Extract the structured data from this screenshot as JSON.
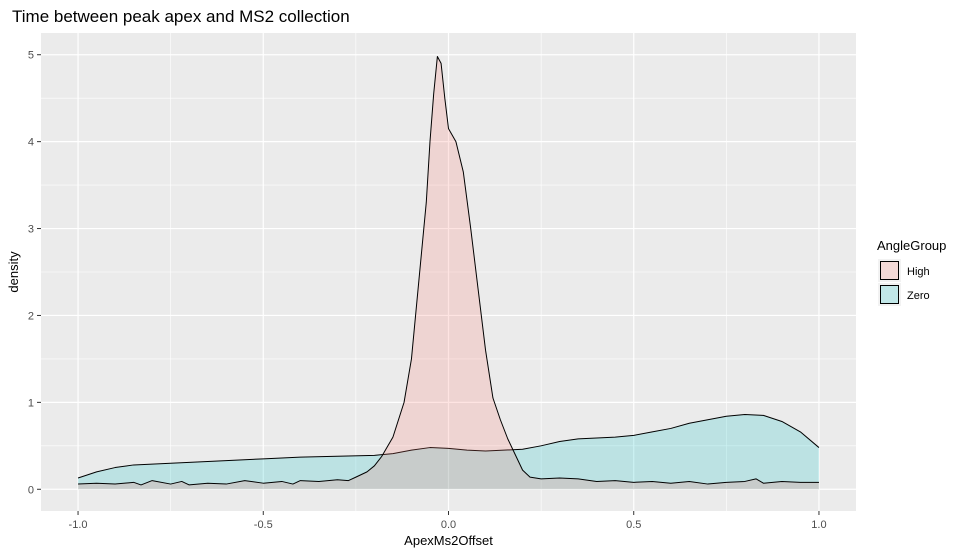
{
  "chart_data": {
    "type": "area",
    "title": "Time between peak apex and MS2 collection",
    "xlabel": "ApexMs2Offset",
    "ylabel": "density",
    "xlim": [
      -1.1,
      1.1
    ],
    "ylim": [
      -0.25,
      5.25
    ],
    "x_ticks": [
      -1.0,
      -0.5,
      0.0,
      0.5,
      1.0
    ],
    "x_tick_labels": [
      "-1.0",
      "-0.5",
      "0.0",
      "0.5",
      "1.0"
    ],
    "y_ticks": [
      0,
      1,
      2,
      3,
      4,
      5
    ],
    "y_tick_labels": [
      "0",
      "1",
      "2",
      "3",
      "4",
      "5"
    ],
    "grid": true,
    "panel_background": "#ebebeb",
    "legend_position": "right",
    "legend_title": "AngleGroup",
    "series": [
      {
        "name": "High",
        "fill": "#f8766d",
        "fill_opacity": 0.2,
        "x": [
          -1.0,
          -0.95,
          -0.9,
          -0.85,
          -0.83,
          -0.8,
          -0.75,
          -0.72,
          -0.7,
          -0.65,
          -0.6,
          -0.55,
          -0.5,
          -0.45,
          -0.42,
          -0.4,
          -0.35,
          -0.3,
          -0.27,
          -0.25,
          -0.22,
          -0.2,
          -0.18,
          -0.15,
          -0.12,
          -0.1,
          -0.08,
          -0.06,
          -0.05,
          -0.04,
          -0.03,
          -0.02,
          -0.01,
          0.0,
          0.02,
          0.04,
          0.06,
          0.08,
          0.1,
          0.12,
          0.14,
          0.16,
          0.18,
          0.2,
          0.22,
          0.25,
          0.3,
          0.35,
          0.4,
          0.45,
          0.5,
          0.55,
          0.6,
          0.65,
          0.7,
          0.75,
          0.8,
          0.83,
          0.85,
          0.9,
          0.95,
          1.0
        ],
        "y": [
          0.06,
          0.07,
          0.06,
          0.08,
          0.05,
          0.1,
          0.06,
          0.09,
          0.05,
          0.07,
          0.06,
          0.1,
          0.07,
          0.09,
          0.06,
          0.1,
          0.09,
          0.11,
          0.1,
          0.14,
          0.2,
          0.27,
          0.38,
          0.6,
          1.0,
          1.5,
          2.4,
          3.3,
          4.0,
          4.55,
          4.98,
          4.9,
          4.5,
          4.15,
          4.0,
          3.65,
          3.0,
          2.3,
          1.6,
          1.05,
          0.8,
          0.58,
          0.4,
          0.22,
          0.14,
          0.12,
          0.13,
          0.12,
          0.09,
          0.1,
          0.08,
          0.09,
          0.07,
          0.09,
          0.06,
          0.08,
          0.09,
          0.12,
          0.07,
          0.09,
          0.08,
          0.08
        ]
      },
      {
        "name": "Zero",
        "fill": "#00bfc4",
        "fill_opacity": 0.2,
        "x": [
          -1.0,
          -0.95,
          -0.9,
          -0.85,
          -0.8,
          -0.7,
          -0.6,
          -0.5,
          -0.4,
          -0.3,
          -0.2,
          -0.15,
          -0.1,
          -0.05,
          0.0,
          0.05,
          0.1,
          0.15,
          0.2,
          0.25,
          0.3,
          0.35,
          0.4,
          0.45,
          0.5,
          0.55,
          0.6,
          0.65,
          0.7,
          0.75,
          0.8,
          0.85,
          0.9,
          0.95,
          1.0
        ],
        "y": [
          0.13,
          0.2,
          0.25,
          0.28,
          0.29,
          0.31,
          0.33,
          0.35,
          0.37,
          0.38,
          0.39,
          0.41,
          0.45,
          0.48,
          0.47,
          0.45,
          0.44,
          0.45,
          0.46,
          0.5,
          0.55,
          0.58,
          0.59,
          0.6,
          0.62,
          0.66,
          0.7,
          0.76,
          0.8,
          0.84,
          0.86,
          0.85,
          0.78,
          0.66,
          0.48
        ]
      }
    ]
  }
}
